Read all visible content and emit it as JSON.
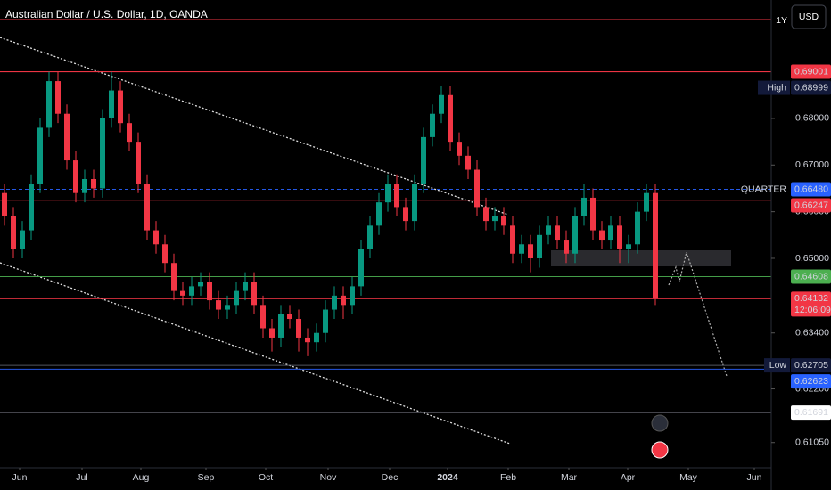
{
  "chart_data": {
    "type": "candlestick",
    "title": "Australian Dollar / U.S. Dollar, 1D, OANDA",
    "currency": "USD",
    "range_tag": "1Y",
    "countdown": "12:06:09",
    "up_color": "#089981",
    "down_color": "#f23645",
    "ylim": [
      0.6051,
      0.7054
    ],
    "xlim": [
      -0.5,
      86
    ],
    "yticks": [
      {
        "value": 0.68,
        "label": "0.68000"
      },
      {
        "value": 0.67,
        "label": "0.67000"
      },
      {
        "value": 0.66,
        "label": "0.66000"
      },
      {
        "value": 0.65,
        "label": "0.65000"
      },
      {
        "value": 0.634,
        "label": "0.63400"
      },
      {
        "value": 0.622,
        "label": "0.62200"
      },
      {
        "value": 0.6105,
        "label": "0.61050"
      }
    ],
    "xticks": [
      {
        "value": 1.7,
        "label": "Jun"
      },
      {
        "value": 8.7,
        "label": "Jul"
      },
      {
        "value": 15.3,
        "label": "Aug"
      },
      {
        "value": 22.6,
        "label": "Sep"
      },
      {
        "value": 29.3,
        "label": "Oct"
      },
      {
        "value": 36.3,
        "label": "Nov"
      },
      {
        "value": 43.2,
        "label": "Dec"
      },
      {
        "value": 49.7,
        "label": "2024"
      },
      {
        "value": 56.5,
        "label": "Feb"
      },
      {
        "value": 63.3,
        "label": "Mar"
      },
      {
        "value": 69.9,
        "label": "Apr"
      },
      {
        "value": 76.7,
        "label": "May"
      },
      {
        "value": 84.1,
        "label": "Jun"
      }
    ],
    "open": [
      0.664,
      0.659,
      0.652,
      0.656,
      0.666,
      0.678,
      0.688,
      0.681,
      0.671,
      0.664,
      0.667,
      0.665,
      0.68,
      0.686,
      0.679,
      0.675,
      0.666,
      0.656,
      0.653,
      0.649,
      0.643,
      0.642,
      0.644,
      0.645,
      0.641,
      0.639,
      0.64,
      0.643,
      0.645,
      0.64,
      0.635,
      0.633,
      0.638,
      0.637,
      0.633,
      0.632,
      0.634,
      0.639,
      0.642,
      0.64,
      0.644,
      0.652,
      0.657,
      0.662,
      0.666,
      0.661,
      0.658,
      0.666,
      0.676,
      0.681,
      0.685,
      0.675,
      0.672,
      0.669,
      0.661,
      0.658,
      0.659,
      0.657,
      0.651,
      0.653,
      0.65,
      0.655,
      0.657,
      0.654,
      0.651,
      0.659,
      0.663,
      0.656,
      0.654,
      0.657,
      0.652,
      0.653,
      0.66,
      0.664
    ],
    "close": [
      0.659,
      0.652,
      0.656,
      0.666,
      0.678,
      0.688,
      0.681,
      0.671,
      0.664,
      0.667,
      0.665,
      0.68,
      0.686,
      0.679,
      0.675,
      0.666,
      0.656,
      0.653,
      0.649,
      0.643,
      0.642,
      0.644,
      0.645,
      0.641,
      0.639,
      0.64,
      0.643,
      0.645,
      0.64,
      0.635,
      0.633,
      0.638,
      0.637,
      0.633,
      0.632,
      0.634,
      0.639,
      0.642,
      0.64,
      0.644,
      0.652,
      0.657,
      0.662,
      0.666,
      0.661,
      0.658,
      0.666,
      0.676,
      0.681,
      0.685,
      0.675,
      0.672,
      0.669,
      0.661,
      0.658,
      0.659,
      0.657,
      0.651,
      0.653,
      0.65,
      0.655,
      0.657,
      0.654,
      0.651,
      0.659,
      0.663,
      0.656,
      0.654,
      0.657,
      0.652,
      0.653,
      0.66,
      0.664,
      0.6413
    ],
    "high": [
      0.666,
      0.661,
      0.658,
      0.668,
      0.68,
      0.69,
      0.69,
      0.683,
      0.673,
      0.669,
      0.669,
      0.682,
      0.69,
      0.688,
      0.681,
      0.677,
      0.668,
      0.658,
      0.655,
      0.651,
      0.645,
      0.646,
      0.647,
      0.647,
      0.643,
      0.642,
      0.645,
      0.647,
      0.647,
      0.642,
      0.637,
      0.64,
      0.64,
      0.639,
      0.635,
      0.636,
      0.641,
      0.644,
      0.644,
      0.646,
      0.654,
      0.659,
      0.664,
      0.668,
      0.668,
      0.663,
      0.668,
      0.678,
      0.683,
      0.687,
      0.687,
      0.677,
      0.674,
      0.671,
      0.663,
      0.661,
      0.661,
      0.659,
      0.655,
      0.655,
      0.657,
      0.659,
      0.659,
      0.656,
      0.661,
      0.666,
      0.665,
      0.658,
      0.659,
      0.659,
      0.655,
      0.662,
      0.666,
      0.666
    ],
    "low": [
      0.657,
      0.65,
      0.65,
      0.654,
      0.664,
      0.676,
      0.679,
      0.669,
      0.662,
      0.662,
      0.663,
      0.663,
      0.678,
      0.677,
      0.673,
      0.664,
      0.654,
      0.651,
      0.647,
      0.641,
      0.64,
      0.64,
      0.642,
      0.639,
      0.637,
      0.637,
      0.638,
      0.641,
      0.638,
      0.633,
      0.63,
      0.631,
      0.635,
      0.63,
      0.629,
      0.63,
      0.632,
      0.637,
      0.637,
      0.638,
      0.642,
      0.65,
      0.655,
      0.66,
      0.659,
      0.656,
      0.656,
      0.664,
      0.674,
      0.679,
      0.673,
      0.67,
      0.667,
      0.659,
      0.656,
      0.656,
      0.655,
      0.649,
      0.649,
      0.647,
      0.648,
      0.653,
      0.652,
      0.649,
      0.649,
      0.657,
      0.654,
      0.652,
      0.652,
      0.649,
      0.649,
      0.651,
      0.658,
      0.64
    ],
    "price_lines": [
      {
        "value": 0.69001,
        "color": "#f23645"
      },
      {
        "tag": "High",
        "value": 0.68999,
        "color": "#f23645"
      },
      {
        "tag": "QUARTER",
        "value": {
          "value": 0.6648,
          "label": "0.66480"
        },
        "color": "#2962ff",
        "dashed": true
      },
      {
        "value": 0.66247,
        "color": "#f23645"
      },
      {
        "value": 0.64608,
        "color": "#4caf50"
      },
      {
        "value": 0.64132,
        "color": "#f23645",
        "current": true
      },
      {
        "tag": "Low",
        "value": 0.62705,
        "color": "#5d606b"
      },
      {
        "value": 0.62623,
        "color": "#2962ff"
      },
      {
        "value": 0.61691,
        "color": "#787b86",
        "light": true
      }
    ]
  }
}
